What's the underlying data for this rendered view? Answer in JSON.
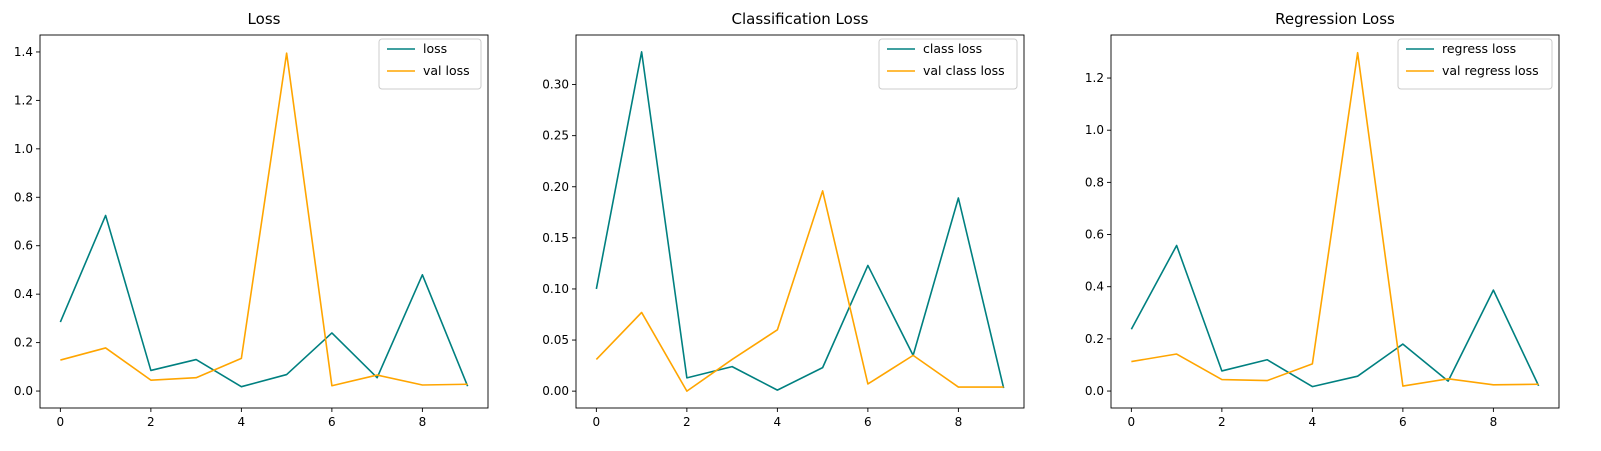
{
  "chart_data": [
    {
      "type": "line",
      "title": "Loss",
      "xlabel": "",
      "ylabel": "",
      "x": [
        0,
        1,
        2,
        3,
        4,
        5,
        6,
        7,
        8,
        9
      ],
      "xlim": [
        -0.45,
        9.45
      ],
      "ylim": [
        -0.07,
        1.47
      ],
      "xticks": [
        "0",
        "2",
        "4",
        "6",
        "8"
      ],
      "yticks": [
        "0.0",
        "0.2",
        "0.4",
        "0.6",
        "0.8",
        "1.0",
        "1.2",
        "1.4"
      ],
      "legend_position": "top-right",
      "grid": false,
      "series": [
        {
          "name": "loss",
          "color": "#008080",
          "values": [
            0.285,
            0.725,
            0.085,
            0.13,
            0.018,
            0.068,
            0.24,
            0.055,
            0.48,
            0.02
          ]
        },
        {
          "name": "val loss",
          "color": "#ffa500",
          "values": [
            0.128,
            0.178,
            0.045,
            0.055,
            0.135,
            1.395,
            0.022,
            0.066,
            0.025,
            0.028
          ]
        }
      ]
    },
    {
      "type": "line",
      "title": "Classification Loss",
      "xlabel": "",
      "ylabel": "",
      "x": [
        0,
        1,
        2,
        3,
        4,
        5,
        6,
        7,
        8,
        9
      ],
      "xlim": [
        -0.45,
        9.45
      ],
      "ylim": [
        -0.0165,
        0.3485
      ],
      "xticks": [
        "0",
        "2",
        "4",
        "6",
        "8"
      ],
      "yticks": [
        "0.00",
        "0.05",
        "0.10",
        "0.15",
        "0.20",
        "0.25",
        "0.30"
      ],
      "legend_position": "top-right",
      "grid": false,
      "series": [
        {
          "name": "class loss",
          "color": "#008080",
          "values": [
            0.1,
            0.332,
            0.013,
            0.024,
            0.001,
            0.023,
            0.123,
            0.035,
            0.189,
            0.003
          ]
        },
        {
          "name": "val class loss",
          "color": "#ffa500",
          "values": [
            0.031,
            0.077,
            0.0,
            0.031,
            0.06,
            0.196,
            0.007,
            0.035,
            0.004,
            0.004
          ]
        }
      ]
    },
    {
      "type": "line",
      "title": "Regression Loss",
      "xlabel": "",
      "ylabel": "",
      "x": [
        0,
        1,
        2,
        3,
        4,
        5,
        6,
        7,
        8,
        9
      ],
      "xlim": [
        -0.45,
        9.45
      ],
      "ylim": [
        -0.065,
        1.365
      ],
      "xticks": [
        "0",
        "2",
        "4",
        "6",
        "8"
      ],
      "yticks": [
        "0.0",
        "0.2",
        "0.4",
        "0.6",
        "0.8",
        "1.0",
        "1.2"
      ],
      "legend_position": "top-right",
      "grid": false,
      "series": [
        {
          "name": "regress loss",
          "color": "#008080",
          "values": [
            0.237,
            0.558,
            0.077,
            0.12,
            0.017,
            0.057,
            0.18,
            0.038,
            0.387,
            0.02
          ]
        },
        {
          "name": "val regress loss",
          "color": "#ffa500",
          "values": [
            0.113,
            0.142,
            0.044,
            0.04,
            0.104,
            1.297,
            0.019,
            0.047,
            0.024,
            0.026
          ]
        }
      ]
    }
  ]
}
